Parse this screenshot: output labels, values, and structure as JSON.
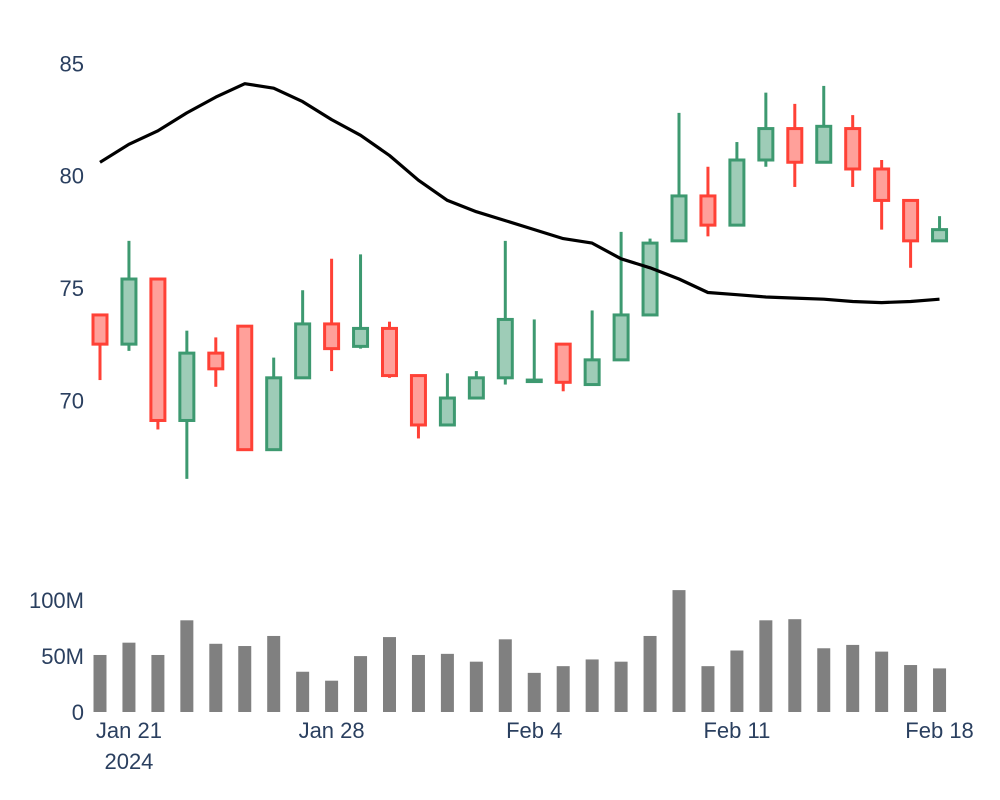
{
  "chart_data": [
    {
      "type": "candlestick",
      "x": [
        "2024-01-20",
        "2024-01-21",
        "2024-01-22",
        "2024-01-23",
        "2024-01-24",
        "2024-01-25",
        "2024-01-26",
        "2024-01-27",
        "2024-01-28",
        "2024-01-29",
        "2024-01-30",
        "2024-01-31",
        "2024-02-01",
        "2024-02-02",
        "2024-02-03",
        "2024-02-04",
        "2024-02-05",
        "2024-02-06",
        "2024-02-07",
        "2024-02-08",
        "2024-02-09",
        "2024-02-10",
        "2024-02-11",
        "2024-02-12",
        "2024-02-13",
        "2024-02-14",
        "2024-02-15",
        "2024-02-16",
        "2024-02-17",
        "2024-02-18"
      ],
      "open": [
        73.8,
        72.5,
        75.4,
        69.1,
        72.1,
        73.3,
        67.8,
        71.0,
        73.4,
        72.4,
        73.2,
        71.1,
        68.9,
        70.1,
        71.0,
        70.9,
        72.5,
        70.7,
        71.8,
        73.8,
        77.1,
        79.1,
        77.8,
        80.7,
        82.1,
        80.6,
        82.1,
        80.3,
        78.9,
        77.1
      ],
      "high": [
        73.8,
        77.1,
        75.4,
        73.1,
        72.8,
        73.3,
        71.9,
        74.9,
        76.3,
        76.5,
        73.5,
        71.1,
        71.2,
        71.3,
        77.1,
        73.6,
        72.5,
        74.0,
        77.5,
        77.2,
        82.8,
        80.4,
        81.5,
        83.7,
        83.2,
        84.0,
        82.7,
        80.7,
        78.9,
        78.2
      ],
      "low": [
        70.9,
        72.2,
        68.7,
        66.5,
        70.6,
        67.8,
        67.8,
        71.0,
        71.3,
        72.3,
        71.0,
        68.3,
        68.9,
        70.1,
        70.7,
        70.9,
        70.4,
        70.7,
        71.8,
        73.8,
        77.1,
        77.3,
        77.8,
        80.4,
        79.5,
        80.6,
        79.5,
        77.6,
        75.9,
        77.1
      ],
      "close": [
        72.5,
        75.4,
        69.1,
        72.1,
        71.4,
        67.8,
        71.0,
        73.4,
        72.3,
        73.2,
        71.1,
        68.9,
        70.1,
        71.0,
        73.6,
        70.9,
        70.8,
        71.8,
        73.8,
        77.0,
        79.1,
        77.8,
        80.7,
        82.1,
        80.6,
        82.2,
        80.3,
        78.9,
        77.1,
        77.6
      ],
      "increasing_color": "#3d9970",
      "decreasing_color": "#ff4136",
      "ma_line": {
        "color": "#000000",
        "values": [
          80.6,
          81.4,
          82.0,
          82.8,
          83.5,
          84.1,
          83.9,
          83.3,
          82.5,
          81.8,
          80.9,
          79.8,
          78.9,
          78.4,
          78.0,
          77.6,
          77.2,
          77.0,
          76.3,
          75.9,
          75.4,
          74.8,
          74.7,
          74.6,
          74.55,
          74.5,
          74.4,
          74.35,
          74.4,
          74.5
        ]
      },
      "yticks": [
        "70",
        "75",
        "80",
        "85"
      ],
      "ylim": [
        64.0,
        86.0
      ],
      "grid": false
    },
    {
      "type": "bar",
      "values": [
        51,
        62,
        51,
        82,
        61,
        59,
        68,
        36,
        28,
        50,
        67,
        51,
        52,
        45,
        65,
        35,
        41,
        47,
        45,
        68,
        109,
        41,
        55,
        82,
        83,
        57,
        60,
        54,
        42,
        39
      ],
      "unit": "M",
      "bar_color": "#808080",
      "yticks": [
        "0",
        "50M",
        "100M"
      ],
      "ylim": [
        0,
        110
      ],
      "grid": false
    }
  ],
  "x_axis": {
    "ticks": [
      {
        "date": "2024-01-21",
        "label": "Jan 21",
        "sublabel": "2024"
      },
      {
        "date": "2024-01-28",
        "label": "Jan 28",
        "sublabel": ""
      },
      {
        "date": "2024-02-04",
        "label": "Feb 4",
        "sublabel": ""
      },
      {
        "date": "2024-02-11",
        "label": "Feb 11",
        "sublabel": ""
      },
      {
        "date": "2024-02-18",
        "label": "Feb 18",
        "sublabel": ""
      }
    ]
  }
}
